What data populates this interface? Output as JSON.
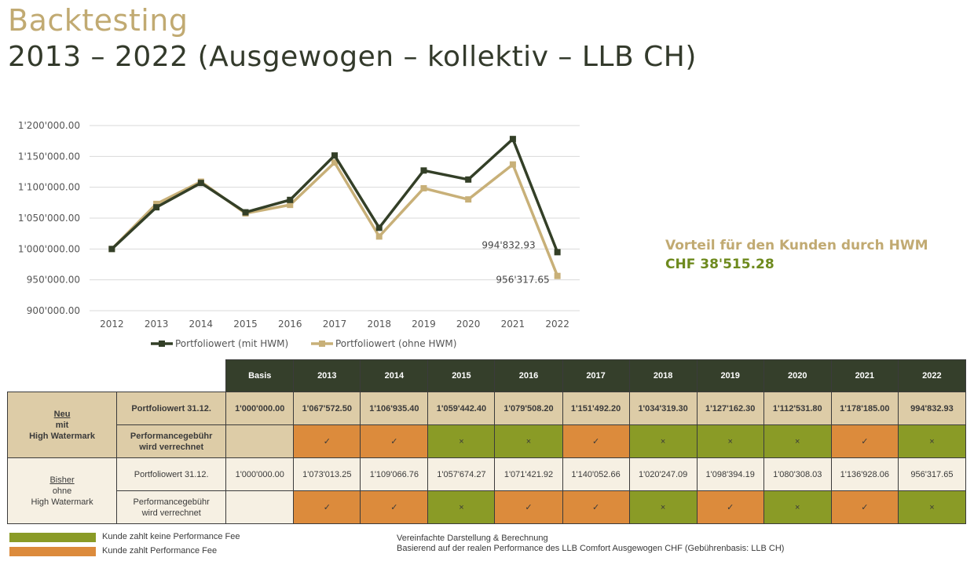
{
  "header": {
    "title": "Backtesting",
    "subtitle": "2013 – 2022 (Ausgewogen – kollektiv – LLB CH)"
  },
  "advantage": {
    "line1": "Vorteil für den Kunden durch HWM",
    "line2": "CHF 38'515.28"
  },
  "chart_data": {
    "type": "line",
    "categories": [
      "2012",
      "2013",
      "2014",
      "2015",
      "2016",
      "2017",
      "2018",
      "2019",
      "2020",
      "2021",
      "2022"
    ],
    "series": [
      {
        "name": "Portfoliowert (mit HWM)",
        "color": "#333f27",
        "values": [
          1000000.0,
          1067572.5,
          1106935.4,
          1059442.4,
          1079508.2,
          1151492.2,
          1034319.3,
          1127162.3,
          1112531.8,
          1178185.0,
          994832.93
        ]
      },
      {
        "name": "Portfoliowert (ohne HWM)",
        "color": "#c8b078",
        "values": [
          1000000.0,
          1073013.25,
          1109066.76,
          1057674.27,
          1071421.92,
          1140052.66,
          1020247.09,
          1098394.19,
          1080308.03,
          1136928.06,
          956317.65
        ]
      }
    ],
    "ylim": [
      900000,
      1200000
    ],
    "yticks": [
      "900'000.00",
      "950'000.00",
      "1'000'000.00",
      "1'050'000.00",
      "1'100'000.00",
      "1'150'000.00",
      "1'200'000.00"
    ],
    "ytick_values": [
      900000,
      950000,
      1000000,
      1050000,
      1100000,
      1150000,
      1200000
    ],
    "annotations": [
      {
        "text": "994'832.93",
        "series": 0,
        "index": 10
      },
      {
        "text": "956'317.65",
        "series": 1,
        "index": 10
      }
    ],
    "grid": true,
    "legend": "bottom"
  },
  "table": {
    "columns": [
      "Basis",
      "2013",
      "2014",
      "2015",
      "2016",
      "2017",
      "2018",
      "2019",
      "2020",
      "2021",
      "2022"
    ],
    "neu": {
      "label_top": "Neu",
      "label_mid": "mit",
      "label_bot": "High Watermark",
      "row1_label": "Portfoliowert 31.12.",
      "row1": [
        "1'000'000.00",
        "1'067'572.50",
        "1'106'935.40",
        "1'059'442.40",
        "1'079'508.20",
        "1'151'492.20",
        "1'034'319.30",
        "1'127'162.30",
        "1'112'531.80",
        "1'178'185.00",
        "994'832.93"
      ],
      "row2_label_a": "Performancegebühr",
      "row2_label_b": "wird verrechnet",
      "row2": [
        "",
        "✓",
        "✓",
        "×",
        "×",
        "✓",
        "×",
        "×",
        "×",
        "✓",
        "×"
      ]
    },
    "bisher": {
      "label_top": "Bisher",
      "label_mid": "ohne",
      "label_bot": "High Watermark",
      "row1_label": "Portfoliowert 31.12.",
      "row1": [
        "1'000'000.00",
        "1'073'013.25",
        "1'109'066.76",
        "1'057'674.27",
        "1'071'421.92",
        "1'140'052.66",
        "1'020'247.09",
        "1'098'394.19",
        "1'080'308.03",
        "1'136'928.06",
        "956'317.65"
      ],
      "row2_label_a": "Performancegebühr",
      "row2_label_b": "wird verrechnet",
      "row2": [
        "",
        "✓",
        "✓",
        "×",
        "✓",
        "✓",
        "×",
        "✓",
        "×",
        "✓",
        "×"
      ]
    }
  },
  "colors": {
    "fee": "#dc8b3c",
    "nofee": "#8a9b26"
  },
  "legend": {
    "green": "Kunde zahlt keine Performance Fee",
    "orange": "Kunde zahlt Performance Fee"
  },
  "notes": {
    "line1": "Vereinfachte Darstellung & Berechnung",
    "line2": "Basierend auf der realen Performance des LLB Comfort Ausgewogen CHF (Gebührenbasis: LLB CH)"
  }
}
